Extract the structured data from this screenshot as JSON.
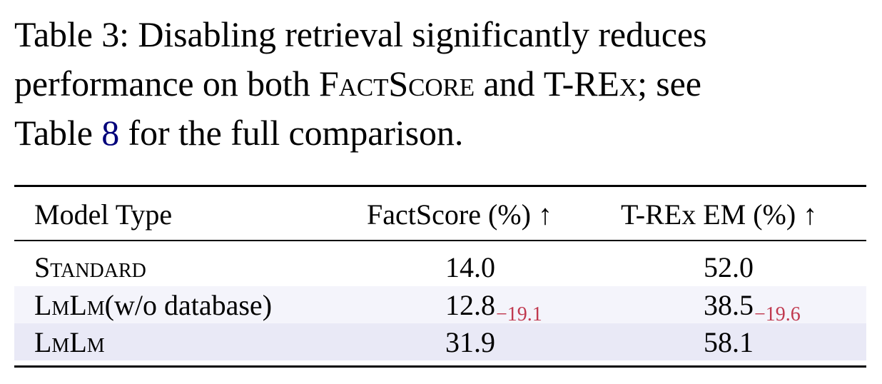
{
  "caption": {
    "line1": "Table 3: Disabling retrieval significantly reduces",
    "line2_pre": "performance on both ",
    "line2_factscore": "FactScore",
    "line2_mid": " and ",
    "line2_trex": "T-REx",
    "line2_post": "; see",
    "line3_pre": "Table ",
    "line3_ref": "8",
    "line3_post": " for the full comparison."
  },
  "table": {
    "headers": {
      "model": "Model Type",
      "factscore": "FactScore (%) ↑",
      "trex": "T-REx EM (%) ↑"
    },
    "rows": [
      {
        "model": "Standard",
        "model_suffix": "",
        "factscore": "14.0",
        "factscore_delta": "",
        "trex": "52.0",
        "trex_delta": ""
      },
      {
        "model": "LmLm",
        "model_suffix": " (w/o database)",
        "factscore": "12.8",
        "factscore_delta": "−19.1",
        "trex": "38.5",
        "trex_delta": "−19.6"
      },
      {
        "model": "LmLm",
        "model_suffix": "",
        "factscore": "31.9",
        "factscore_delta": "",
        "trex": "58.1",
        "trex_delta": ""
      }
    ]
  },
  "colors": {
    "delta": "#c0394f",
    "ref_link": "#00007a",
    "row_highlight_light": "#f4f4fb",
    "row_highlight": "#e9e9f6"
  }
}
